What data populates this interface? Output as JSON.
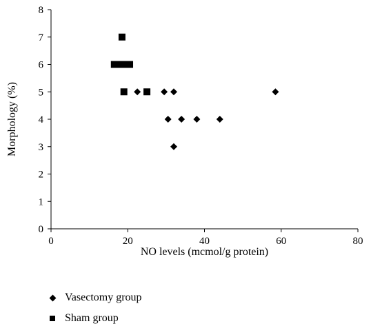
{
  "chart_data": {
    "type": "scatter",
    "title": "",
    "xlabel": "NO levels (mcmol/g protein)",
    "ylabel": "Morphology (%)",
    "xlim": [
      0,
      80
    ],
    "ylim": [
      0,
      8
    ],
    "xticks": [
      0,
      20,
      40,
      60,
      80
    ],
    "yticks": [
      0,
      1,
      2,
      3,
      4,
      5,
      6,
      7,
      8
    ],
    "grid": false,
    "legend_position": "bottom-left",
    "series": [
      {
        "name": "Vasectomy group",
        "marker": "diamond",
        "color": "#000000",
        "points": [
          {
            "x": 22.5,
            "y": 5
          },
          {
            "x": 29.5,
            "y": 5
          },
          {
            "x": 32,
            "y": 5
          },
          {
            "x": 58.5,
            "y": 5
          },
          {
            "x": 30.5,
            "y": 4
          },
          {
            "x": 34,
            "y": 4
          },
          {
            "x": 38,
            "y": 4
          },
          {
            "x": 44,
            "y": 4
          },
          {
            "x": 32,
            "y": 3
          }
        ]
      },
      {
        "name": "Sham group",
        "marker": "square",
        "color": "#000000",
        "points": [
          {
            "x": 18.5,
            "y": 7
          },
          {
            "x": 16.5,
            "y": 6
          },
          {
            "x": 17.5,
            "y": 6
          },
          {
            "x": 19,
            "y": 6
          },
          {
            "x": 20.5,
            "y": 6
          },
          {
            "x": 19,
            "y": 5
          },
          {
            "x": 25,
            "y": 5
          }
        ]
      }
    ]
  }
}
